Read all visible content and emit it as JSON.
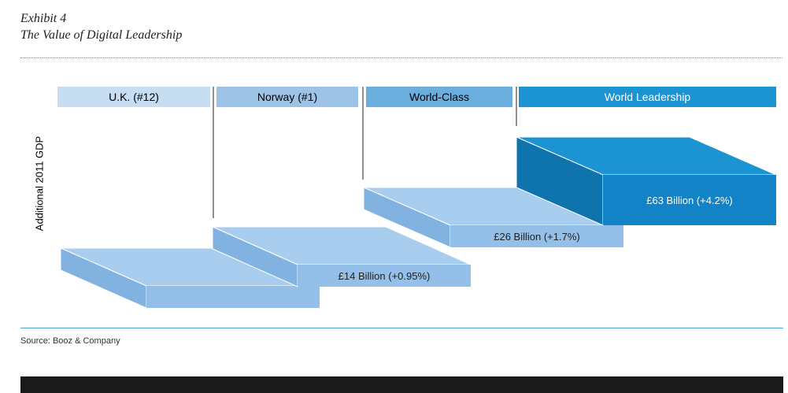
{
  "exhibit": {
    "label": "Exhibit 4",
    "title": "The Value of Digital Leadership"
  },
  "chart_data": {
    "type": "bar",
    "ylabel": "Additional 2011 GDP",
    "categories": [
      "U.K. (#12)",
      "Norway (#1)",
      "World-Class",
      "World Leadership"
    ],
    "steps": [
      {
        "value_billion_gbp": 0,
        "gdp_increase_pct": 0,
        "label": ""
      },
      {
        "value_billion_gbp": 14,
        "gdp_increase_pct": 0.95,
        "label": "£14 Billion (+0.95%)"
      },
      {
        "value_billion_gbp": 26,
        "gdp_increase_pct": 1.7,
        "label": "£26 Billion (+1.7%)"
      },
      {
        "value_billion_gbp": 63,
        "gdp_increase_pct": 4.2,
        "label": "£63 Billion (+4.2%)"
      }
    ],
    "colors": {
      "header": [
        "#c6ddf2",
        "#9dc3e6",
        "#6aaedd",
        "#1c93d2"
      ],
      "step_top": "#a9cdee",
      "step_front": "#93bfe8",
      "step_side": "#82b3e0",
      "leader_top": "#1c93d2",
      "leader_front": "#1283c6",
      "leader_side": "#0f73ae"
    }
  },
  "source": "Source: Booz & Company"
}
